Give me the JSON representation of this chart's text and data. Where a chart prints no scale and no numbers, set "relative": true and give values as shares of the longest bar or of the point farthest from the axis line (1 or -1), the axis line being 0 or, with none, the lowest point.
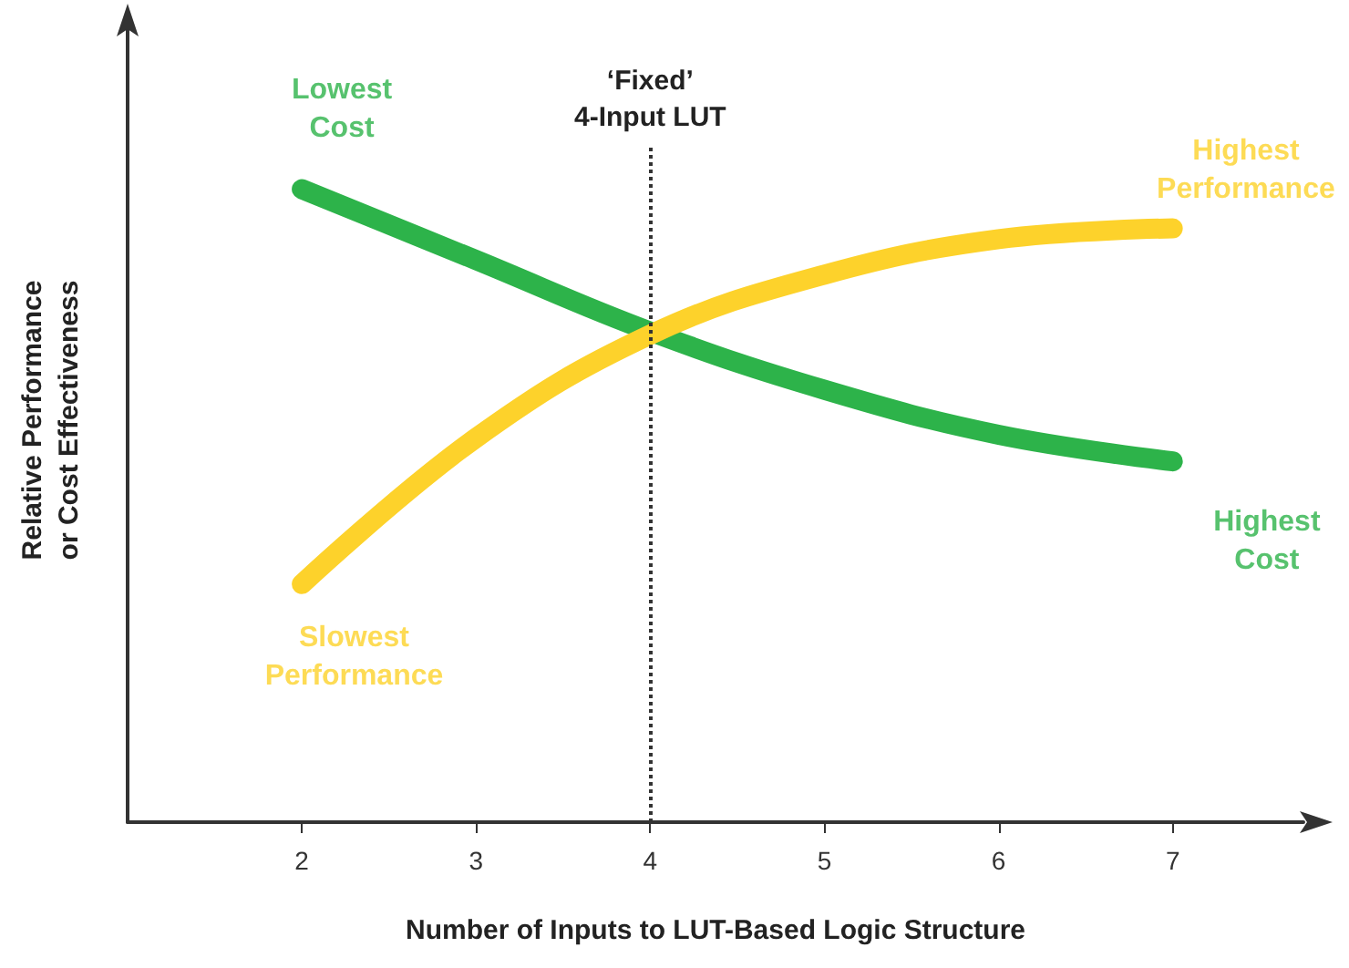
{
  "chart_data": {
    "type": "line",
    "relative": true,
    "xlabel": "Number of Inputs to LUT-Based Logic Structure",
    "ylabel": "Relative Performance\nor Cost Effectiveness",
    "xlim": [
      1,
      7.75
    ],
    "xticks": [
      2,
      3,
      4,
      5,
      6,
      7
    ],
    "grid": false,
    "marker": "none",
    "line_style": "solid",
    "series": [
      {
        "color": "#2db34a",
        "x": [
          2,
          3,
          4,
          5,
          6,
          7
        ],
        "values": [
          1,
          0.888,
          0.775,
          0.683,
          0.612,
          0.57
        ]
      },
      {
        "color": "#fdd22b",
        "x": [
          2,
          3,
          4,
          5,
          6,
          7
        ],
        "values": [
          0.376,
          0.607,
          0.77,
          0.865,
          0.921,
          0.938
        ]
      }
    ],
    "ref_lines": [
      {
        "axis": "x",
        "value": 4,
        "label": "‘Fixed’\n4-Input LUT",
        "color": "#333333",
        "line_style": "dotted"
      }
    ],
    "annotations": [
      "Lowest\nCost",
      "Highest\nPerformance",
      "Highest\nCost",
      "Slowest\nPerformance"
    ]
  }
}
